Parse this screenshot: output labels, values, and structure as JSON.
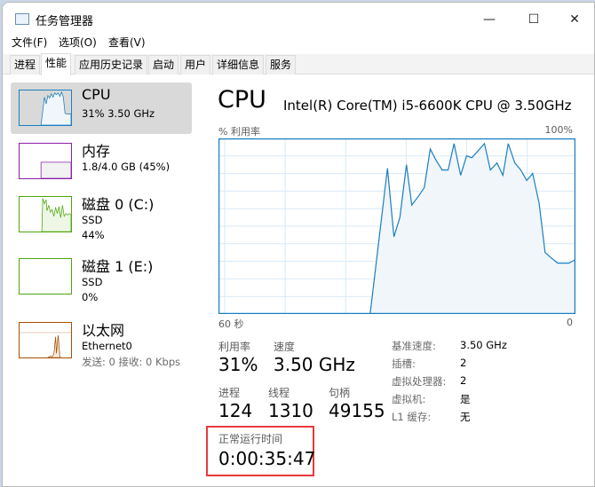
{
  "window": {
    "title": "任务管理器",
    "minimize": "—",
    "maximize": "☐",
    "close": "✕"
  },
  "menu": [
    "文件(F)",
    "选项(O)",
    "查看(V)"
  ],
  "tabs": [
    "进程",
    "性能",
    "应用历史记录",
    "启动",
    "用户",
    "详细信息",
    "服务"
  ],
  "active_tab": "性能",
  "sidebar": [
    {
      "title": "CPU",
      "line1": "31% 3.50 GHz",
      "color": "#1a7fc1",
      "selected": true
    },
    {
      "title": "内存",
      "line1": "1.8/4.0 GB (45%)",
      "color": "#8b1fa9"
    },
    {
      "title": "磁盘 0 (C:)",
      "line1": "SSD",
      "line2": "44%",
      "color": "#4da60c"
    },
    {
      "title": "磁盘 1 (E:)",
      "line1": "SSD",
      "line2": "0%",
      "color": "#4da60c"
    },
    {
      "title": "以太网",
      "line1": "Ethernet0",
      "line2": "发送: 0 接收: 0 Kbps",
      "color": "#a74f01"
    }
  ],
  "main": {
    "heading": "CPU",
    "model": "Intel(R) Core(TM) i5-6600K CPU @ 3.50GHz",
    "stats": {
      "util_label": "利用率",
      "util": "31%",
      "speed_label": "速度",
      "speed": "3.50 GHz",
      "proc_label": "进程",
      "proc": "124",
      "thread_label": "线程",
      "thread": "1310",
      "handle_label": "句柄",
      "handle": "49155",
      "uptime_label": "正常运行时间",
      "uptime": "0:00:35:47"
    },
    "specs": [
      {
        "k": "基准速度:",
        "v": "3.50 GHz"
      },
      {
        "k": "插槽:",
        "v": "2"
      },
      {
        "k": "虚拟处理器:",
        "v": "2"
      },
      {
        "k": "虚拟机:",
        "v": "是"
      },
      {
        "k": "L1 缓存:",
        "v": "无"
      }
    ],
    "highlight_color": "#e8383d"
  },
  "chart_data": {
    "type": "area",
    "ylabel": "% 利用率",
    "ymax_label": "100%",
    "xmin_label": "60 秒",
    "xmax_label": "0",
    "xlim": [
      60,
      0
    ],
    "ylim": [
      0,
      100
    ],
    "grid": true,
    "color": "#1a7fc1",
    "fill": "#f1f6fb",
    "x_seconds_ago": [
      60,
      34.5,
      31.6,
      30.5,
      29.5,
      28.4,
      27.5,
      26.4,
      25.4,
      24.4,
      23.5,
      22.4,
      21.4,
      20.4,
      19.3,
      18.3,
      17.4,
      15.3,
      14.3,
      13.2,
      12.2,
      11.3,
      10.2,
      9.2,
      8.2,
      7.2,
      6.1,
      5.1,
      4.1,
      3.0,
      2.1,
      1.1,
      0
    ],
    "values": [
      0,
      0,
      83,
      44,
      55,
      85,
      62,
      67,
      72,
      94,
      88,
      82,
      82,
      97,
      79,
      90,
      89,
      97,
      82,
      86,
      79,
      97,
      86,
      82,
      76,
      80,
      63,
      35,
      32,
      29,
      29,
      29,
      31
    ]
  }
}
